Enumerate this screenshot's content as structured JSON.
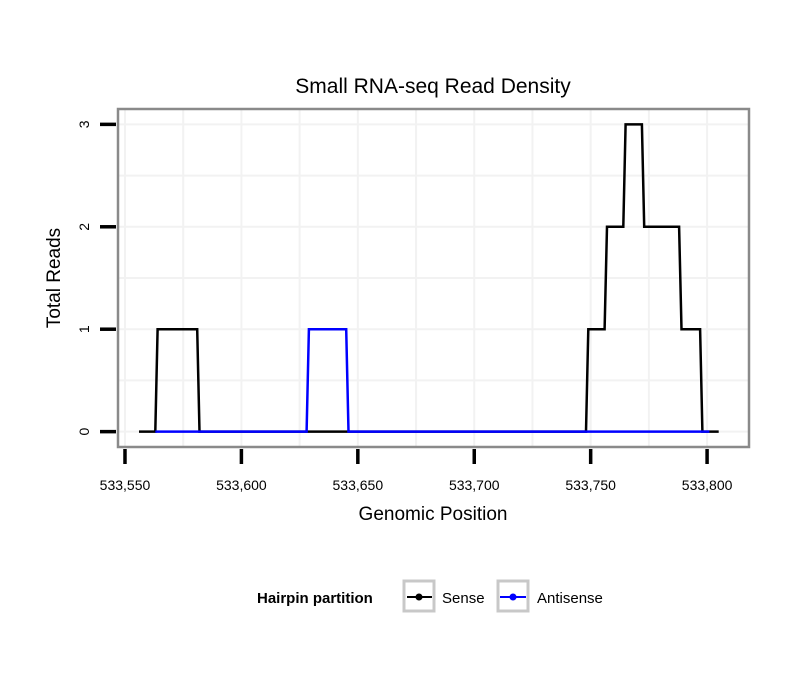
{
  "chart_data": {
    "type": "line",
    "title": "Small RNA-seq Read Density",
    "xlabel": "Genomic Position",
    "ylabel": "Total Reads",
    "xlim": [
      533547,
      533818
    ],
    "ylim": [
      -0.15,
      3.15
    ],
    "x_ticks": [
      533550,
      533600,
      533650,
      533700,
      533750,
      533800
    ],
    "x_tick_labels": [
      "533,550",
      "533,600",
      "533,650",
      "533,700",
      "533,750",
      "533,800"
    ],
    "y_ticks": [
      0,
      1,
      2,
      3
    ],
    "y_tick_labels": [
      "0",
      "1",
      "2",
      "3"
    ],
    "grid": true,
    "legend": {
      "title": "Hairpin partition",
      "position": "bottom"
    },
    "series": [
      {
        "name": "Sense",
        "color": "#000000",
        "points": [
          [
            533556,
            0
          ],
          [
            533563,
            0
          ],
          [
            533564,
            1
          ],
          [
            533581,
            1
          ],
          [
            533582,
            0
          ],
          [
            533748,
            0
          ],
          [
            533749,
            1
          ],
          [
            533756,
            1
          ],
          [
            533757,
            2
          ],
          [
            533764,
            2
          ],
          [
            533765,
            3
          ],
          [
            533772,
            3
          ],
          [
            533773,
            2
          ],
          [
            533788,
            2
          ],
          [
            533789,
            1
          ],
          [
            533797,
            1
          ],
          [
            533798,
            0
          ],
          [
            533805,
            0
          ]
        ]
      },
      {
        "name": "Antisense",
        "color": "#0000ff",
        "points": [
          [
            533563,
            0
          ],
          [
            533628,
            0
          ],
          [
            533629,
            1
          ],
          [
            533645,
            1
          ],
          [
            533646,
            0
          ],
          [
            533749,
            0
          ],
          [
            533801,
            0
          ]
        ]
      }
    ]
  }
}
